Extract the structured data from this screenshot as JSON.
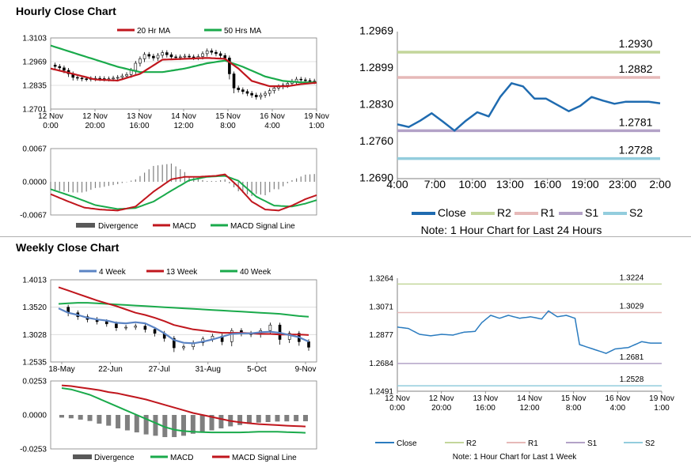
{
  "sections": {
    "hourly_title": "Hourly Close Chart",
    "weekly_title": "Weekly Close Chart"
  },
  "colors": {
    "red": "#c0161d",
    "green": "#1aaa4b",
    "blue_ma": "#5b84c4",
    "close_blue": "#1f6bb0",
    "close_blue_weekly": "#2a7bbf",
    "r2": "#c3d69b",
    "r1": "#e6b9b8",
    "s1": "#b3a2c7",
    "s2": "#93cddd",
    "hist": "#7f7f7f",
    "price": "#000000",
    "grid": "#d9d9d9"
  },
  "chart_data": [
    {
      "id": "hourly_price",
      "type": "line",
      "legend": [
        "20 Hr MA",
        "50 Hrs MA"
      ],
      "yticks": [
        "1.3103",
        "1.2969",
        "1.2835",
        "1.2701"
      ],
      "ylim": [
        1.2701,
        1.3103
      ],
      "xticks": [
        "12 Nov\n0:00",
        "12 Nov\n20:00",
        "13 Nov\n16:00",
        "14 Nov\n12:00",
        "15 Nov\n8:00",
        "16 Nov\n4:00",
        "19 Nov\n1:00"
      ],
      "n": 120,
      "ma20_anchors": [
        [
          0,
          1.293
        ],
        [
          10,
          1.29
        ],
        [
          20,
          1.2868
        ],
        [
          30,
          1.2862
        ],
        [
          40,
          1.29
        ],
        [
          50,
          1.298
        ],
        [
          60,
          1.2985
        ],
        [
          70,
          1.299
        ],
        [
          78,
          1.2985
        ],
        [
          84,
          1.293
        ],
        [
          90,
          1.286
        ],
        [
          98,
          1.283
        ],
        [
          106,
          1.283
        ],
        [
          112,
          1.2842
        ],
        [
          119,
          1.285
        ]
      ],
      "ma50_anchors": [
        [
          0,
          1.306
        ],
        [
          10,
          1.302
        ],
        [
          20,
          1.298
        ],
        [
          30,
          1.294
        ],
        [
          40,
          1.291
        ],
        [
          50,
          1.291
        ],
        [
          60,
          1.293
        ],
        [
          70,
          1.296
        ],
        [
          78,
          1.2975
        ],
        [
          86,
          1.294
        ],
        [
          96,
          1.2885
        ],
        [
          104,
          1.286
        ],
        [
          112,
          1.2852
        ],
        [
          119,
          1.2852
        ]
      ],
      "close_anchors": [
        [
          0,
          1.295
        ],
        [
          5,
          1.293
        ],
        [
          10,
          1.288
        ],
        [
          15,
          1.287
        ],
        [
          20,
          1.2875
        ],
        [
          25,
          1.287
        ],
        [
          30,
          1.288
        ],
        [
          35,
          1.29
        ],
        [
          38,
          1.296
        ],
        [
          42,
          1.301
        ],
        [
          46,
          1.299
        ],
        [
          50,
          1.302
        ],
        [
          55,
          1.299
        ],
        [
          60,
          1.3
        ],
        [
          65,
          1.299
        ],
        [
          70,
          1.303
        ],
        [
          75,
          1.301
        ],
        [
          78,
          1.299
        ],
        [
          80,
          1.29
        ],
        [
          82,
          1.282
        ],
        [
          86,
          1.28
        ],
        [
          92,
          1.277
        ],
        [
          96,
          1.279
        ],
        [
          100,
          1.282
        ],
        [
          105,
          1.284
        ],
        [
          110,
          1.287
        ],
        [
          115,
          1.286
        ],
        [
          119,
          1.2855
        ]
      ]
    },
    {
      "id": "hourly_macd",
      "type": "line",
      "legend": [
        "Divergence",
        "MACD",
        "MACD Signal Line"
      ],
      "yticks": [
        "0.0067",
        "0.0000",
        "-0.0067"
      ],
      "ylim": [
        -0.0067,
        0.0067
      ],
      "n": 120,
      "macd_anchors": [
        [
          0,
          -0.0025
        ],
        [
          8,
          -0.004
        ],
        [
          15,
          -0.0052
        ],
        [
          22,
          -0.0056
        ],
        [
          30,
          -0.0058
        ],
        [
          38,
          -0.005
        ],
        [
          46,
          -0.002
        ],
        [
          54,
          0.0005
        ],
        [
          60,
          0.001
        ],
        [
          66,
          0.001
        ],
        [
          74,
          0.0012
        ],
        [
          78,
          0.0015
        ],
        [
          84,
          -0.001
        ],
        [
          90,
          -0.004
        ],
        [
          96,
          -0.0056
        ],
        [
          102,
          -0.0058
        ],
        [
          108,
          -0.0048
        ],
        [
          114,
          -0.0035
        ],
        [
          119,
          -0.0027
        ]
      ],
      "signal_anchors": [
        [
          0,
          -0.0015
        ],
        [
          10,
          -0.003
        ],
        [
          20,
          -0.0047
        ],
        [
          30,
          -0.0055
        ],
        [
          38,
          -0.0053
        ],
        [
          46,
          -0.004
        ],
        [
          54,
          -0.0018
        ],
        [
          62,
          0.0003
        ],
        [
          70,
          0.001
        ],
        [
          78,
          0.0012
        ],
        [
          84,
          0.0002
        ],
        [
          92,
          -0.003
        ],
        [
          100,
          -0.0048
        ],
        [
          108,
          -0.005
        ],
        [
          114,
          -0.0044
        ],
        [
          119,
          -0.0037
        ]
      ]
    },
    {
      "id": "hourly_pivot",
      "type": "line",
      "yticks": [
        "1.2969",
        "1.2899",
        "1.2830",
        "1.2760",
        "1.2690"
      ],
      "ylim": [
        1.269,
        1.2969
      ],
      "xticks": [
        "4:00",
        "7:00",
        "10:00",
        "13:00",
        "16:00",
        "19:00",
        "23:00",
        "2:00"
      ],
      "close": [
        1.2793,
        1.2788,
        1.28,
        1.2814,
        1.2798,
        1.2781,
        1.28,
        1.2816,
        1.2808,
        1.2845,
        1.2871,
        1.2865,
        1.2842,
        1.2842,
        1.283,
        1.2818,
        1.2828,
        1.2845,
        1.2838,
        1.2832,
        1.2836,
        1.2836,
        1.2836,
        1.2833
      ],
      "levels": {
        "R2": 1.293,
        "R1": 1.2882,
        "S1": 1.2781,
        "S2": 1.2728
      },
      "level_labels": {
        "R2": "1.2930",
        "R1": "1.2882",
        "S1": "1.2781",
        "S2": "1.2728"
      },
      "legend": [
        "Close",
        "R2",
        "R1",
        "S1",
        "S2"
      ],
      "note": "Note: 1 Hour Chart for Last 24 Hours"
    },
    {
      "id": "weekly_price",
      "type": "line",
      "legend": [
        "4 Week",
        "13 Week",
        "40 Week"
      ],
      "yticks": [
        "1.4013",
        "1.3520",
        "1.3028",
        "1.2535"
      ],
      "ylim": [
        1.2535,
        1.4013
      ],
      "xticks": [
        "18-May",
        "22-Jun",
        "27-Jul",
        "31-Aug",
        "5-Oct",
        "9-Nov"
      ],
      "n": 27,
      "close": [
        1.352,
        1.342,
        1.335,
        1.33,
        1.326,
        1.322,
        1.315,
        1.316,
        1.318,
        1.312,
        1.305,
        1.296,
        1.279,
        1.281,
        1.288,
        1.295,
        1.3,
        1.29,
        1.31,
        1.305,
        1.303,
        1.31,
        1.32,
        1.294,
        1.305,
        1.29,
        1.28
      ],
      "wk4": [
        1.35,
        1.342,
        1.338,
        1.333,
        1.33,
        1.328,
        1.324,
        1.323,
        1.325,
        1.323,
        1.315,
        1.305,
        1.293,
        1.288,
        1.287,
        1.29,
        1.294,
        1.299,
        1.304,
        1.305,
        1.305,
        1.307,
        1.308,
        1.306,
        1.302,
        1.298,
        1.29
      ],
      "wk13": [
        1.388,
        1.382,
        1.376,
        1.37,
        1.364,
        1.359,
        1.354,
        1.348,
        1.342,
        1.338,
        1.333,
        1.327,
        1.32,
        1.316,
        1.312,
        1.31,
        1.308,
        1.306,
        1.306,
        1.306,
        1.305,
        1.304,
        1.304,
        1.303,
        1.303,
        1.303,
        1.302
      ],
      "wk40": [
        1.358,
        1.359,
        1.36,
        1.36,
        1.359,
        1.358,
        1.357,
        1.356,
        1.355,
        1.354,
        1.353,
        1.352,
        1.351,
        1.35,
        1.349,
        1.348,
        1.347,
        1.346,
        1.345,
        1.344,
        1.343,
        1.342,
        1.341,
        1.34,
        1.338,
        1.336,
        1.335
      ]
    },
    {
      "id": "weekly_macd",
      "type": "line",
      "legend": [
        "Divergence",
        "MACD",
        "MACD Signal Line"
      ],
      "yticks": [
        "0.0253",
        "0.0000",
        "-0.0253"
      ],
      "ylim": [
        -0.0253,
        0.0253
      ],
      "n": 27,
      "macd": [
        0.02,
        0.019,
        0.017,
        0.015,
        0.012,
        0.009,
        0.006,
        0.003,
        0.0,
        -0.003,
        -0.006,
        -0.009,
        -0.011,
        -0.012,
        -0.0125,
        -0.0128,
        -0.013,
        -0.013,
        -0.013,
        -0.013,
        -0.0128,
        -0.0125,
        -0.0125,
        -0.0125,
        -0.0128,
        -0.013,
        -0.0133
      ],
      "signal": [
        0.022,
        0.0215,
        0.0205,
        0.0195,
        0.0185,
        0.017,
        0.016,
        0.0145,
        0.013,
        0.0115,
        0.0095,
        0.0075,
        0.0055,
        0.0035,
        0.0015,
        0.0,
        -0.0015,
        -0.003,
        -0.0045,
        -0.0055,
        -0.0062,
        -0.0068,
        -0.0072,
        -0.0076,
        -0.008,
        -0.0083,
        -0.0086
      ]
    },
    {
      "id": "weekly_pivot",
      "type": "line",
      "yticks": [
        "1.3264",
        "1.3071",
        "1.2877",
        "1.2684",
        "1.2491"
      ],
      "ylim": [
        1.2491,
        1.3264
      ],
      "xticks": [
        "12 Nov\n0:00",
        "12 Nov\n20:00",
        "13 Nov\n16:00",
        "14 Nov\n12:00",
        "15 Nov\n8:00",
        "16 Nov\n4:00",
        "19 Nov\n1:00"
      ],
      "n": 120,
      "close_anchors": [
        [
          0,
          1.293
        ],
        [
          5,
          1.292
        ],
        [
          10,
          1.288
        ],
        [
          15,
          1.287
        ],
        [
          20,
          1.288
        ],
        [
          25,
          1.2875
        ],
        [
          30,
          1.2895
        ],
        [
          35,
          1.29
        ],
        [
          38,
          1.296
        ],
        [
          42,
          1.301
        ],
        [
          46,
          1.299
        ],
        [
          50,
          1.301
        ],
        [
          55,
          1.299
        ],
        [
          60,
          1.3
        ],
        [
          65,
          1.2985
        ],
        [
          68,
          1.304
        ],
        [
          72,
          1.3
        ],
        [
          76,
          1.301
        ],
        [
          80,
          1.299
        ],
        [
          82,
          1.281
        ],
        [
          86,
          1.279
        ],
        [
          90,
          1.277
        ],
        [
          94,
          1.275
        ],
        [
          98,
          1.278
        ],
        [
          104,
          1.279
        ],
        [
          110,
          1.283
        ],
        [
          114,
          1.282
        ],
        [
          119,
          1.282
        ]
      ],
      "levels": {
        "R2": 1.3224,
        "R1": 1.3029,
        "S1": 1.2681,
        "S2": 1.2528
      },
      "level_labels": {
        "R2": "1.3224",
        "R1": "1.3029",
        "S1": "1.2681",
        "S2": "1.2528"
      },
      "legend": [
        "Close",
        "R2",
        "R1",
        "S1",
        "S2"
      ],
      "note": "Note: 1 Hour Chart for Last 1 Week"
    }
  ]
}
